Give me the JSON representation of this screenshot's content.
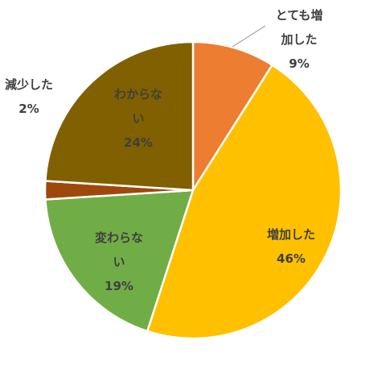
{
  "chart_data": {
    "type": "pie",
    "title": "",
    "slices": [
      {
        "name": "とても増加した",
        "value": 9,
        "display": "9%",
        "color": "#ED7D31",
        "lines": [
          "とても増",
          "加した",
          "9%"
        ]
      },
      {
        "name": "増加した",
        "value": 46,
        "display": "46%",
        "color": "#FFC000",
        "lines": [
          "増加した",
          "46%"
        ]
      },
      {
        "name": "変わらない",
        "value": 19,
        "display": "19%",
        "color": "#70AD47",
        "lines": [
          "変わらな",
          "い",
          "19%"
        ]
      },
      {
        "name": "減少した",
        "value": 2,
        "display": "2%",
        "color": "#9E480E",
        "lines": [
          "減少した",
          "2%"
        ]
      },
      {
        "name": "わからない",
        "value": 24,
        "display": "24%",
        "color": "#806000",
        "lines": [
          "わからな",
          "い",
          "24%"
        ]
      }
    ]
  }
}
